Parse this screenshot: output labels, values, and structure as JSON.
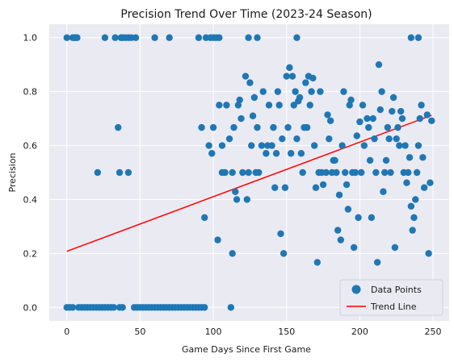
{
  "chart_data": {
    "type": "scatter",
    "title": "Precision Trend Over Time (2023-24 Season)",
    "xlabel": "Game Days Since First Game",
    "ylabel": "Precision",
    "xlim": [
      -12,
      261
    ],
    "ylim": [
      -0.05,
      1.05
    ],
    "xticks": [
      0,
      50,
      100,
      150,
      200,
      250
    ],
    "yticks": [
      0.0,
      0.2,
      0.4,
      0.6,
      0.8,
      1.0
    ],
    "xtick_labels": [
      "0",
      "50",
      "100",
      "150",
      "200",
      "250"
    ],
    "ytick_labels": [
      "0.0",
      "0.2",
      "0.4",
      "0.6",
      "0.8",
      "1.0"
    ],
    "grid": true,
    "legend_position": "lower-right",
    "colors": {
      "points": "#1f77b4",
      "trend": "#ff0000",
      "background": "#eaeaf2",
      "grid": "#ffffff"
    },
    "series": [
      {
        "name": "Data Points",
        "kind": "scatter",
        "points": [
          [
            0,
            1.0
          ],
          [
            4,
            1.0
          ],
          [
            5,
            1.0
          ],
          [
            6,
            1.0
          ],
          [
            7,
            1.0
          ],
          [
            26,
            1.0
          ],
          [
            33,
            1.0
          ],
          [
            37,
            1.0
          ],
          [
            38,
            1.0
          ],
          [
            40,
            1.0
          ],
          [
            42,
            1.0
          ],
          [
            44,
            1.0
          ],
          [
            47,
            1.0
          ],
          [
            60,
            1.0
          ],
          [
            70,
            1.0
          ],
          [
            90,
            1.0
          ],
          [
            95,
            1.0
          ],
          [
            98,
            1.0
          ],
          [
            100,
            1.0
          ],
          [
            102,
            1.0
          ],
          [
            104,
            1.0
          ],
          [
            124,
            1.0
          ],
          [
            130,
            1.0
          ],
          [
            157,
            1.0
          ],
          [
            235,
            1.0
          ],
          [
            240,
            1.0
          ],
          [
            0,
            0.0
          ],
          [
            2,
            0.0
          ],
          [
            4,
            0.0
          ],
          [
            8,
            0.0
          ],
          [
            10,
            0.0
          ],
          [
            12,
            0.0
          ],
          [
            14,
            0.0
          ],
          [
            16,
            0.0
          ],
          [
            18,
            0.0
          ],
          [
            20,
            0.0
          ],
          [
            22,
            0.0
          ],
          [
            24,
            0.0
          ],
          [
            26,
            0.0
          ],
          [
            28,
            0.0
          ],
          [
            30,
            0.0
          ],
          [
            32,
            0.0
          ],
          [
            36,
            0.0
          ],
          [
            38,
            0.0
          ],
          [
            46,
            0.0
          ],
          [
            48,
            0.0
          ],
          [
            50,
            0.0
          ],
          [
            52,
            0.0
          ],
          [
            54,
            0.0
          ],
          [
            56,
            0.0
          ],
          [
            58,
            0.0
          ],
          [
            60,
            0.0
          ],
          [
            62,
            0.0
          ],
          [
            64,
            0.0
          ],
          [
            66,
            0.0
          ],
          [
            68,
            0.0
          ],
          [
            70,
            0.0
          ],
          [
            72,
            0.0
          ],
          [
            74,
            0.0
          ],
          [
            76,
            0.0
          ],
          [
            78,
            0.0
          ],
          [
            80,
            0.0
          ],
          [
            82,
            0.0
          ],
          [
            84,
            0.0
          ],
          [
            86,
            0.0
          ],
          [
            88,
            0.0
          ],
          [
            90,
            0.0
          ],
          [
            92,
            0.0
          ],
          [
            94,
            0.0
          ],
          [
            112,
            0.0
          ],
          [
            21,
            0.5
          ],
          [
            35,
            0.667
          ],
          [
            36,
            0.5
          ],
          [
            42,
            0.5
          ],
          [
            92,
            0.667
          ],
          [
            94,
            0.333
          ],
          [
            97,
            0.6
          ],
          [
            99,
            0.571
          ],
          [
            100,
            0.667
          ],
          [
            103,
            0.25
          ],
          [
            104,
            0.75
          ],
          [
            106,
            0.5
          ],
          [
            106,
            0.6
          ],
          [
            108,
            0.5
          ],
          [
            109,
            0.75
          ],
          [
            111,
            0.625
          ],
          [
            113,
            0.5
          ],
          [
            113,
            0.2
          ],
          [
            114,
            0.667
          ],
          [
            115,
            0.429
          ],
          [
            116,
            0.4
          ],
          [
            117,
            0.75
          ],
          [
            118,
            0.769
          ],
          [
            119,
            0.7
          ],
          [
            120,
            0.5
          ],
          [
            122,
            0.857
          ],
          [
            123,
            0.4
          ],
          [
            124,
            0.5
          ],
          [
            125,
            0.833
          ],
          [
            126,
            0.6
          ],
          [
            127,
            0.71
          ],
          [
            128,
            0.778
          ],
          [
            129,
            0.5
          ],
          [
            130,
            0.667
          ],
          [
            131,
            0.5
          ],
          [
            133,
            0.6
          ],
          [
            134,
            0.8
          ],
          [
            136,
            0.571
          ],
          [
            137,
            0.6
          ],
          [
            138,
            0.75
          ],
          [
            140,
            0.6
          ],
          [
            141,
            0.667
          ],
          [
            142,
            0.444
          ],
          [
            143,
            0.571
          ],
          [
            144,
            0.8
          ],
          [
            145,
            0.75
          ],
          [
            146,
            0.273
          ],
          [
            147,
            0.625
          ],
          [
            148,
            0.2
          ],
          [
            149,
            0.444
          ],
          [
            150,
            0.857
          ],
          [
            151,
            0.667
          ],
          [
            152,
            0.889
          ],
          [
            153,
            0.571
          ],
          [
            154,
            0.857
          ],
          [
            155,
            0.75
          ],
          [
            156,
            0.8
          ],
          [
            157,
            0.625
          ],
          [
            158,
            0.765
          ],
          [
            159,
            0.778
          ],
          [
            160,
            0.571
          ],
          [
            161,
            0.5
          ],
          [
            162,
            0.667
          ],
          [
            163,
            0.833
          ],
          [
            164,
            0.667
          ],
          [
            165,
            0.857
          ],
          [
            166,
            0.75
          ],
          [
            167,
            0.8
          ],
          [
            168,
            0.85
          ],
          [
            169,
            0.6
          ],
          [
            170,
            0.444
          ],
          [
            171,
            0.167
          ],
          [
            172,
            0.5
          ],
          [
            173,
            0.8
          ],
          [
            174,
            0.5
          ],
          [
            175,
            0.455
          ],
          [
            177,
            0.5
          ],
          [
            178,
            0.714
          ],
          [
            179,
            0.625
          ],
          [
            180,
            0.692
          ],
          [
            181,
            0.5
          ],
          [
            182,
            0.545
          ],
          [
            183,
            0.545
          ],
          [
            184,
            0.5
          ],
          [
            185,
            0.286
          ],
          [
            186,
            0.417
          ],
          [
            187,
            0.25
          ],
          [
            188,
            0.6
          ],
          [
            189,
            0.8
          ],
          [
            190,
            0.5
          ],
          [
            191,
            0.455
          ],
          [
            192,
            0.364
          ],
          [
            193,
            0.75
          ],
          [
            194,
            0.769
          ],
          [
            195,
            0.5
          ],
          [
            196,
            0.222
          ],
          [
            197,
            0.5
          ],
          [
            198,
            0.636
          ],
          [
            199,
            0.333
          ],
          [
            200,
            0.688
          ],
          [
            201,
            0.5
          ],
          [
            202,
            0.75
          ],
          [
            203,
            0.6
          ],
          [
            205,
            0.7
          ],
          [
            206,
            0.667
          ],
          [
            207,
            0.545
          ],
          [
            208,
            0.333
          ],
          [
            209,
            0.7
          ],
          [
            210,
            0.625
          ],
          [
            211,
            0.5
          ],
          [
            212,
            0.167
          ],
          [
            213,
            0.9
          ],
          [
            214,
            0.733
          ],
          [
            215,
            0.8
          ],
          [
            216,
            0.429
          ],
          [
            217,
            0.5
          ],
          [
            218,
            0.545
          ],
          [
            219,
            0.667
          ],
          [
            220,
            0.625
          ],
          [
            221,
            0.5
          ],
          [
            222,
            0.727
          ],
          [
            223,
            0.778
          ],
          [
            224,
            0.222
          ],
          [
            225,
            0.625
          ],
          [
            226,
            0.667
          ],
          [
            227,
            0.6
          ],
          [
            228,
            0.727
          ],
          [
            229,
            0.7
          ],
          [
            230,
            0.5
          ],
          [
            231,
            0.6
          ],
          [
            232,
            0.462
          ],
          [
            233,
            0.5
          ],
          [
            234,
            0.556
          ],
          [
            235,
            0.375
          ],
          [
            236,
            0.286
          ],
          [
            237,
            0.333
          ],
          [
            238,
            0.4
          ],
          [
            239,
            0.5
          ],
          [
            240,
            0.6
          ],
          [
            241,
            0.7
          ],
          [
            242,
            0.75
          ],
          [
            243,
            0.556
          ],
          [
            244,
            0.444
          ],
          [
            246,
            0.714
          ],
          [
            247,
            0.2
          ],
          [
            248,
            0.462
          ],
          [
            249,
            0.692
          ]
        ]
      },
      {
        "name": "Trend Line",
        "kind": "line",
        "x": [
          0,
          249
        ],
        "y": [
          0.208,
          0.712
        ]
      }
    ]
  }
}
